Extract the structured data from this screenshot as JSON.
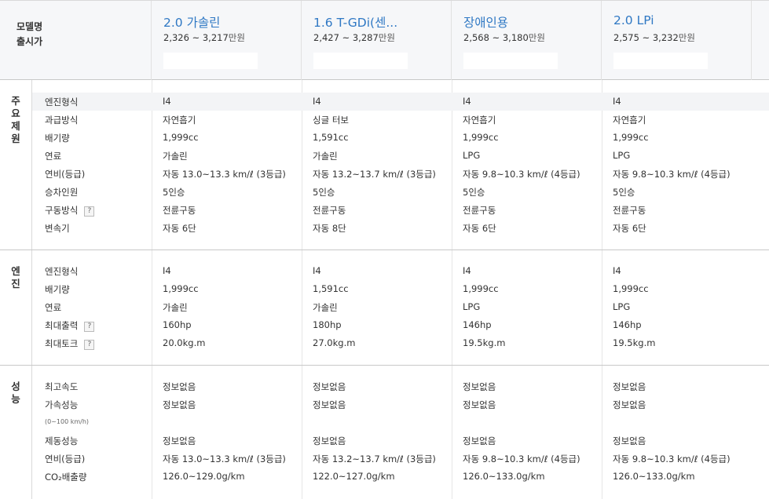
{
  "header": {
    "label_line1": "모델명",
    "label_line2": "출시가",
    "models": [
      {
        "name": "2.0 가솔린",
        "price": "2,326 ~ 3,217",
        "unit": "만원"
      },
      {
        "name": "1.6 T-GDi(센...",
        "price": "2,427 ~ 3,287",
        "unit": "만원"
      },
      {
        "name": "장애인용",
        "price": "2,568 ~ 3,180",
        "unit": "만원"
      },
      {
        "name": "2.0 LPi",
        "price": "2,575 ~ 3,232",
        "unit": "만원"
      }
    ]
  },
  "sections": {
    "main": {
      "label": [
        "주",
        "요",
        "제",
        "원"
      ],
      "rows": [
        {
          "name": "엔진형식",
          "vals": [
            "I4",
            "I4",
            "I4",
            "I4"
          ]
        },
        {
          "name": "과급방식",
          "vals": [
            "자연흡기",
            "싱글 터보",
            "자연흡기",
            "자연흡기"
          ]
        },
        {
          "name": "배기량",
          "vals": [
            "1,999cc",
            "1,591cc",
            "1,999cc",
            "1,999cc"
          ]
        },
        {
          "name": "연료",
          "vals": [
            "가솔린",
            "가솔린",
            "LPG",
            "LPG"
          ]
        },
        {
          "name": "연비(등급)",
          "vals": [
            "자동 13.0~13.3 km/ℓ (3등급)",
            "자동 13.2~13.7 km/ℓ (3등급)",
            "자동 9.8~10.3 km/ℓ (4등급)",
            "자동 9.8~10.3 km/ℓ (4등급)"
          ]
        },
        {
          "name": "승차인원",
          "vals": [
            "5인승",
            "5인승",
            "5인승",
            "5인승"
          ]
        },
        {
          "name": "구동방식",
          "help": "?",
          "vals": [
            "전륜구동",
            "전륜구동",
            "전륜구동",
            "전륜구동"
          ]
        },
        {
          "name": "변속기",
          "vals": [
            "자동 6단",
            "자동 8단",
            "자동 6단",
            "자동 6단"
          ]
        }
      ]
    },
    "engine": {
      "label": [
        "엔",
        "진"
      ],
      "rows": [
        {
          "name": "엔진형식",
          "vals": [
            "I4",
            "I4",
            "I4",
            "I4"
          ]
        },
        {
          "name": "배기량",
          "vals": [
            "1,999cc",
            "1,591cc",
            "1,999cc",
            "1,999cc"
          ]
        },
        {
          "name": "연료",
          "vals": [
            "가솔린",
            "가솔린",
            "LPG",
            "LPG"
          ]
        },
        {
          "name": "최대출력",
          "help": "?",
          "vals": [
            "160hp",
            "180hp",
            "146hp",
            "146hp"
          ]
        },
        {
          "name": "최대토크",
          "help": "?",
          "vals": [
            "20.0kg.m",
            "27.0kg.m",
            "19.5kg.m",
            "19.5kg.m"
          ]
        }
      ]
    },
    "perf": {
      "label": [
        "성",
        "능"
      ],
      "note": "(0~100 km/h)",
      "rows": [
        {
          "name": "최고속도",
          "vals": [
            "정보없음",
            "정보없음",
            "정보없음",
            "정보없음"
          ]
        },
        {
          "name": "가속성능",
          "vals": [
            "정보없음",
            "정보없음",
            "정보없음",
            "정보없음"
          ]
        },
        {
          "name": "제동성능",
          "vals": [
            "정보없음",
            "정보없음",
            "정보없음",
            "정보없음"
          ]
        },
        {
          "name": "연비(등급)",
          "vals": [
            "자동 13.0~13.3 km/ℓ (3등급)",
            "자동 13.2~13.7 km/ℓ (3등급)",
            "자동 9.8~10.3 km/ℓ (4등급)",
            "자동 9.8~10.3 km/ℓ (4등급)"
          ]
        },
        {
          "name": "CO₂배출량",
          "vals": [
            "126.0~129.0g/km",
            "122.0~127.0g/km",
            "126.0~133.0g/km",
            "126.0~133.0g/km"
          ]
        }
      ]
    }
  }
}
